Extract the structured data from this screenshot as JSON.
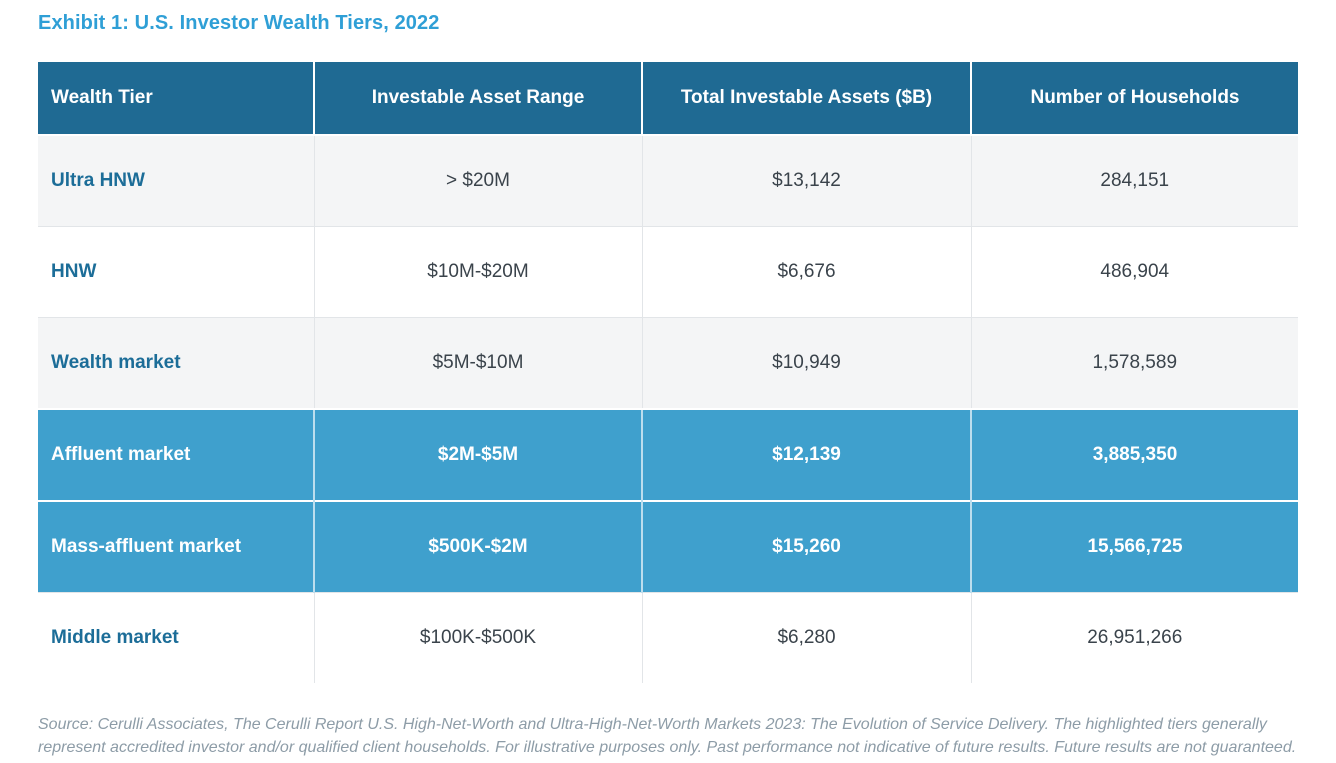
{
  "page": {
    "title": "Exhibit 1: U.S. Investor Wealth Tiers, 2022"
  },
  "colors": {
    "title_blue": "#2f9fd6",
    "header_bg": "#1f6a93",
    "highlight_bg": "#3fa0cd",
    "tier_label_text": "#1c6d98",
    "body_text": "#3a434b",
    "alt_row_bg": "#f4f5f6",
    "source_text": "#8d9ca7"
  },
  "table": {
    "columns": [
      "Wealth Tier",
      "Investable Asset Range",
      "Total Investable Assets ($B)",
      "Number of Households"
    ],
    "rows": [
      {
        "tier": "Ultra HNW",
        "range": "> $20M",
        "assets": "$13,142",
        "households": "284,151",
        "highlighted": false
      },
      {
        "tier": "HNW",
        "range": "$10M-$20M",
        "assets": "$6,676",
        "households": "486,904",
        "highlighted": false
      },
      {
        "tier": "Wealth market",
        "range": "$5M-$10M",
        "assets": "$10,949",
        "households": "1,578,589",
        "highlighted": false
      },
      {
        "tier": "Affluent market",
        "range": "$2M-$5M",
        "assets": "$12,139",
        "households": "3,885,350",
        "highlighted": true
      },
      {
        "tier": "Mass-affluent market",
        "range": "$500K-$2M",
        "assets": "$15,260",
        "households": "15,566,725",
        "highlighted": true
      },
      {
        "tier": "Middle market",
        "range": "$100K-$500K",
        "assets": "$6,280",
        "households": "26,951,266",
        "highlighted": false
      }
    ]
  },
  "footer": {
    "source": "Source: Cerulli Associates, The Cerulli Report U.S. High-Net-Worth and Ultra-High-Net-Worth Markets 2023: The Evolution of Service Delivery. The highlighted tiers generally represent accredited investor and/or qualified client households. For illustrative purposes only. Past performance not indicative of future results. Future results are not guaranteed."
  }
}
